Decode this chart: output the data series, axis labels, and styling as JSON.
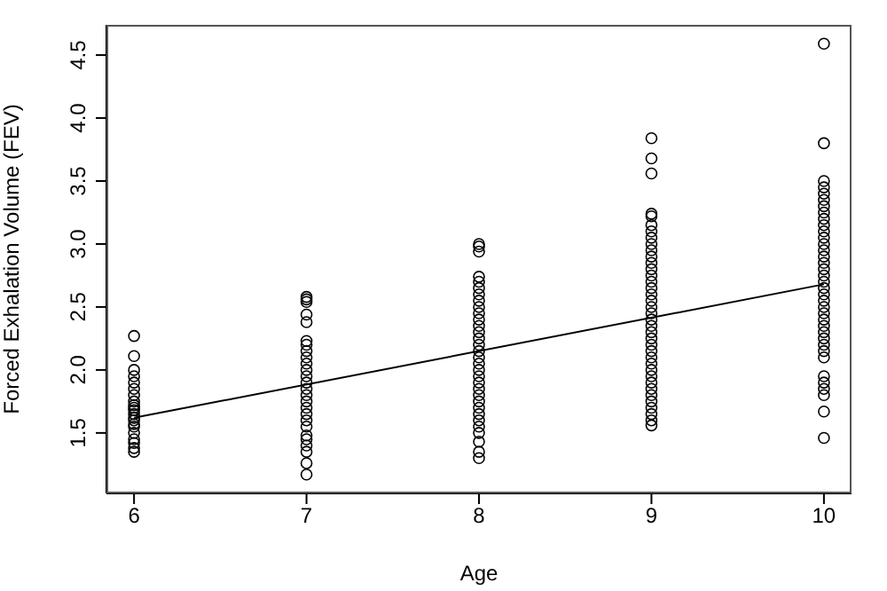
{
  "chart_data": {
    "type": "scatter",
    "xlabel": "Age",
    "ylabel": "Forced Exhalation Volume (FEV)",
    "xlim": [
      5.84,
      10.16
    ],
    "ylim": [
      1.02,
      4.74
    ],
    "xticks": [
      6,
      7,
      8,
      9,
      10
    ],
    "yticks": [
      {
        "value": 1.5,
        "label": "1.5"
      },
      {
        "value": 2,
        "label": "2.0"
      },
      {
        "value": 2.5,
        "label": "2.5"
      },
      {
        "value": 3,
        "label": "3.0"
      },
      {
        "value": 3.5,
        "label": "3.5"
      },
      {
        "value": 4,
        "label": "4.0"
      },
      {
        "value": 4.5,
        "label": "4.5"
      }
    ],
    "grid": false,
    "legend": false,
    "marker": "circle",
    "series": [
      {
        "color": "#000000",
        "x": [
          6,
          6,
          6,
          6,
          6,
          6,
          6,
          6,
          6,
          6,
          6,
          6,
          6,
          6,
          6,
          6,
          6,
          6,
          6,
          6,
          6,
          7,
          7,
          7,
          7,
          7,
          7,
          7,
          7,
          7,
          7,
          7,
          7,
          7,
          7,
          7,
          7,
          7,
          7,
          7,
          7,
          7,
          7,
          7,
          7,
          7,
          7,
          8,
          8,
          8,
          8,
          8,
          8,
          8,
          8,
          8,
          8,
          8,
          8,
          8,
          8,
          8,
          8,
          8,
          8,
          8,
          8,
          8,
          8,
          8,
          8,
          8,
          8,
          8,
          8,
          8,
          8,
          8,
          8,
          9,
          9,
          9,
          9,
          9,
          9,
          9,
          9,
          9,
          9,
          9,
          9,
          9,
          9,
          9,
          9,
          9,
          9,
          9,
          9,
          9,
          9,
          9,
          9,
          9,
          9,
          9,
          9,
          9,
          9,
          9,
          9,
          9,
          9,
          9,
          9,
          9,
          9,
          10,
          10,
          10,
          10,
          10,
          10,
          10,
          10,
          10,
          10,
          10,
          10,
          10,
          10,
          10,
          10,
          10,
          10,
          10,
          10,
          10,
          10,
          10,
          10,
          10,
          10,
          10,
          10,
          10,
          10,
          10,
          10,
          10,
          10,
          10,
          10,
          10
        ],
        "values": [
          2.27,
          2.11,
          2.0,
          1.95,
          1.9,
          1.85,
          1.8,
          1.75,
          1.72,
          1.7,
          1.68,
          1.65,
          1.62,
          1.6,
          1.57,
          1.55,
          1.5,
          1.45,
          1.42,
          1.38,
          1.35,
          2.58,
          2.56,
          2.54,
          2.44,
          2.38,
          2.23,
          2.2,
          2.15,
          2.1,
          2.05,
          2.0,
          1.95,
          1.9,
          1.85,
          1.8,
          1.75,
          1.7,
          1.65,
          1.6,
          1.55,
          1.48,
          1.45,
          1.4,
          1.35,
          1.26,
          1.17,
          3.0,
          2.98,
          2.94,
          2.74,
          2.7,
          2.65,
          2.6,
          2.55,
          2.5,
          2.45,
          2.4,
          2.35,
          2.3,
          2.25,
          2.2,
          2.15,
          2.1,
          2.05,
          2.0,
          1.95,
          1.9,
          1.85,
          1.8,
          1.75,
          1.7,
          1.65,
          1.6,
          1.55,
          1.5,
          1.43,
          1.35,
          1.3,
          3.84,
          3.68,
          3.56,
          3.24,
          3.22,
          3.15,
          3.1,
          3.05,
          3.0,
          2.95,
          2.9,
          2.85,
          2.8,
          2.75,
          2.7,
          2.65,
          2.6,
          2.55,
          2.5,
          2.45,
          2.4,
          2.35,
          2.3,
          2.25,
          2.2,
          2.15,
          2.1,
          2.05,
          2.0,
          1.95,
          1.9,
          1.85,
          1.8,
          1.75,
          1.7,
          1.65,
          1.6,
          1.56,
          4.59,
          3.8,
          3.5,
          3.45,
          3.4,
          3.35,
          3.3,
          3.25,
          3.2,
          3.15,
          3.1,
          3.05,
          3.0,
          2.95,
          2.9,
          2.85,
          2.8,
          2.75,
          2.7,
          2.65,
          2.6,
          2.55,
          2.5,
          2.45,
          2.4,
          2.35,
          2.3,
          2.25,
          2.2,
          2.15,
          2.1,
          1.95,
          1.9,
          1.85,
          1.8,
          1.67,
          1.46
        ]
      },
      {
        "type": "line",
        "marker": "none",
        "color": "#000000",
        "x": [
          6,
          10
        ],
        "values": [
          1.62,
          2.68
        ]
      }
    ]
  }
}
